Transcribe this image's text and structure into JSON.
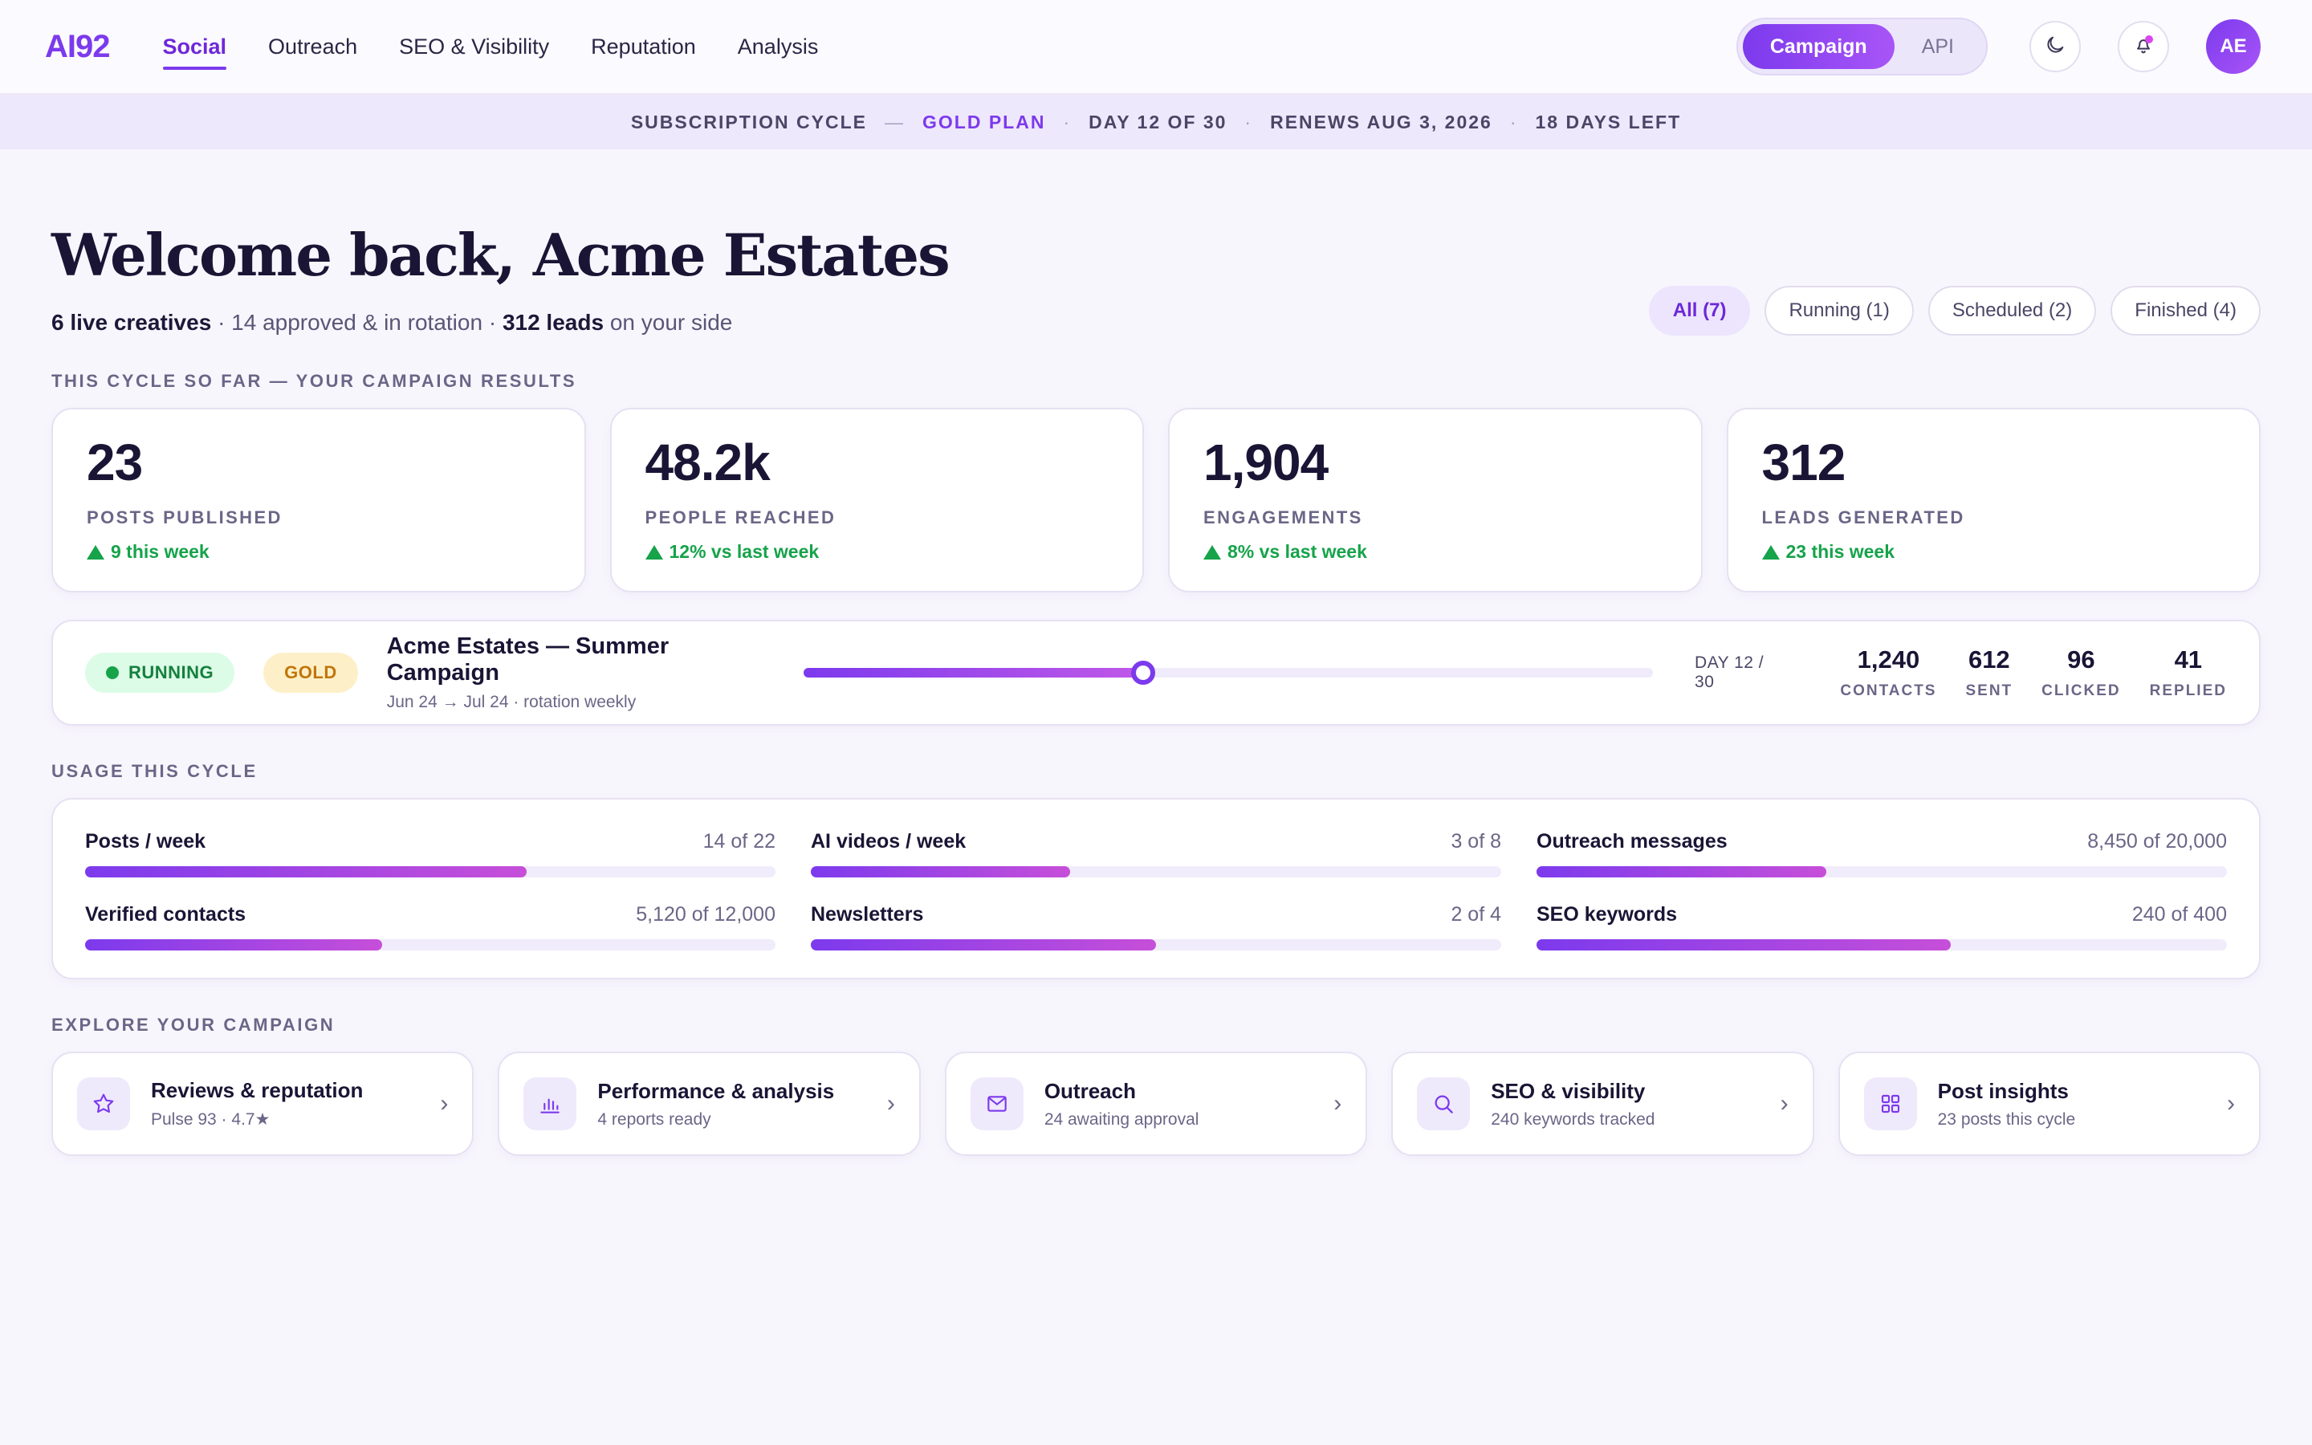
{
  "app": {
    "logo": "AI92"
  },
  "nav": {
    "items": [
      {
        "label": "Social",
        "active": true
      },
      {
        "label": "Outreach",
        "active": false
      },
      {
        "label": "SEO & Visibility",
        "active": false
      },
      {
        "label": "Reputation",
        "active": false
      },
      {
        "label": "Analysis",
        "active": false
      }
    ],
    "mode_toggle": {
      "options": [
        "Campaign",
        "API"
      ],
      "selected": "Campaign"
    },
    "icons": [
      "moon-icon",
      "bell-icon"
    ],
    "avatar": "AE",
    "notification_dot_color": "#d946ef"
  },
  "subscription": {
    "label": "SUBSCRIPTION CYCLE",
    "dash": "—",
    "plan": "GOLD PLAN",
    "day": "DAY 12 OF 30",
    "renews": "RENEWS AUG 3, 2026",
    "left": "18 DAYS LEFT",
    "sep": "·"
  },
  "welcome": {
    "title": "Welcome back, Acme Estates",
    "sub": {
      "creatives_bold": "6 live creatives",
      "middle": "· 14 approved & in rotation ·",
      "leads_bold": "312 leads",
      "tail": "on your side"
    }
  },
  "filters": [
    {
      "label": "All (7)",
      "active": true
    },
    {
      "label": "Running (1)",
      "active": false
    },
    {
      "label": "Scheduled (2)",
      "active": false
    },
    {
      "label": "Finished (4)",
      "active": false
    }
  ],
  "results_label": "THIS CYCLE SO FAR — YOUR CAMPAIGN RESULTS",
  "kpis": [
    {
      "value": "23",
      "label": "POSTS PUBLISHED",
      "delta": "9 this week"
    },
    {
      "value": "48.2k",
      "label": "PEOPLE REACHED",
      "delta": "12% vs last week"
    },
    {
      "value": "1,904",
      "label": "ENGAGEMENTS",
      "delta": "8% vs last week"
    },
    {
      "value": "312",
      "label": "LEADS GENERATED",
      "delta": "23 this week"
    }
  ],
  "campaign": {
    "status": "RUNNING",
    "tier": "GOLD",
    "title": "Acme Estates — Summer Campaign",
    "sub": "Jun 24 → Jul 24 · rotation weekly",
    "progress": 0.4,
    "day": "DAY 12 / 30",
    "stats": [
      {
        "value": "1,240",
        "label": "CONTACTS"
      },
      {
        "value": "612",
        "label": "SENT"
      },
      {
        "value": "96",
        "label": "CLICKED"
      },
      {
        "value": "41",
        "label": "REPLIED"
      }
    ]
  },
  "usage_label": "USAGE THIS CYCLE",
  "usage": [
    {
      "name": "Posts / week",
      "value": "14 of 22",
      "fraction": 0.64
    },
    {
      "name": "AI videos / week",
      "value": "3 of 8",
      "fraction": 0.375
    },
    {
      "name": "Outreach messages",
      "value": "8,450 of 20,000",
      "fraction": 0.42
    },
    {
      "name": "Verified contacts",
      "value": "5,120 of 12,000",
      "fraction": 0.43
    },
    {
      "name": "Newsletters",
      "value": "2 of 4",
      "fraction": 0.5
    },
    {
      "name": "SEO keywords",
      "value": "240 of 400",
      "fraction": 0.6
    }
  ],
  "explore_label": "EXPLORE YOUR CAMPAIGN",
  "explore": [
    {
      "title": "Reviews & reputation",
      "sub": "Pulse 93 · 4.7★",
      "icon": "star-icon"
    },
    {
      "title": "Performance & analysis",
      "sub": "4 reports ready",
      "icon": "bar-chart-icon"
    },
    {
      "title": "Outreach",
      "sub": "24 awaiting approval",
      "icon": "mail-icon"
    },
    {
      "title": "SEO & visibility",
      "sub": "240 keywords tracked",
      "icon": "search-icon"
    },
    {
      "title": "Post insights",
      "sub": "23 posts this cycle",
      "icon": "grid-icon"
    }
  ],
  "colors": {
    "accent": "#7c3aed",
    "accent_light": "#a855f7",
    "success": "#16a34a",
    "gold": "#c2750a",
    "background": "#f8f6fd"
  }
}
